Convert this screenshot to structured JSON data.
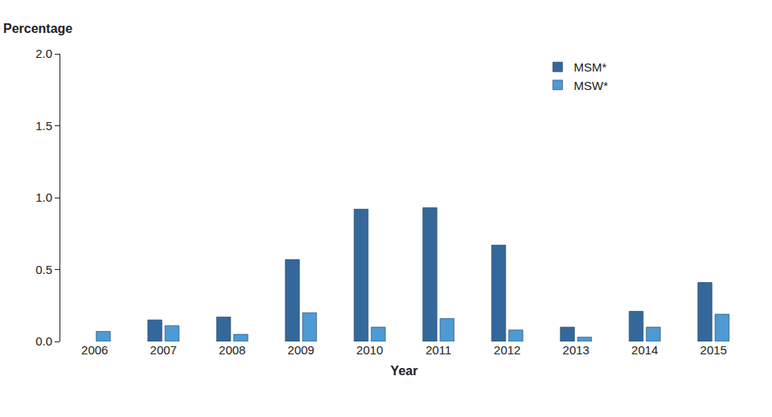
{
  "chart_data": {
    "type": "bar",
    "ylabel": "Percentage",
    "xlabel": "Year",
    "categories": [
      "2006",
      "2007",
      "2008",
      "2009",
      "2010",
      "2011",
      "2012",
      "2013",
      "2014",
      "2015"
    ],
    "series": [
      {
        "name": "MSM*",
        "color": "#35689a",
        "values": [
          null,
          0.15,
          0.17,
          0.57,
          0.92,
          0.93,
          0.67,
          0.1,
          0.21,
          0.41
        ]
      },
      {
        "name": "MSW*",
        "color": "#4d9ad4",
        "values": [
          0.07,
          0.11,
          0.05,
          0.2,
          0.1,
          0.16,
          0.08,
          0.03,
          0.1,
          0.19
        ]
      }
    ],
    "ylim": [
      0,
      2
    ],
    "yticks": [
      {
        "value": 0,
        "label": "0.0"
      },
      0.5,
      {
        "value": 1,
        "label": "1.0"
      },
      1.5,
      {
        "value": 2,
        "label": "2.0"
      }
    ],
    "grid": false,
    "legend": "top-right"
  }
}
